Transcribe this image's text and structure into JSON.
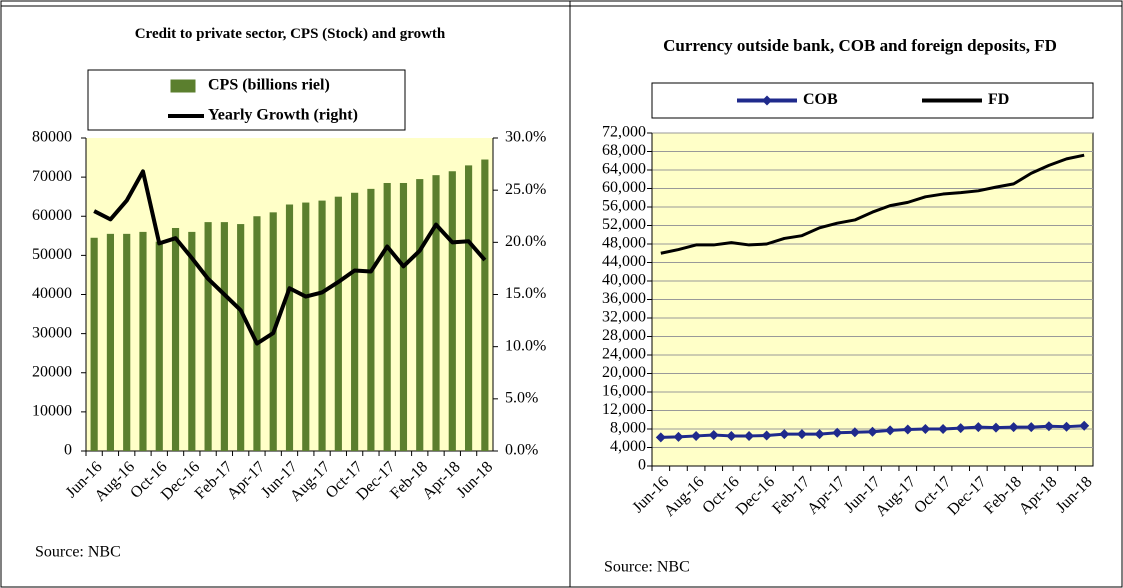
{
  "chart_data": [
    {
      "type": "bar",
      "title": "Credit to private sector, CPS (Stock) and growth",
      "source": "Source: NBC",
      "categories": [
        "Jun-16",
        null,
        "Aug-16",
        null,
        "Oct-16",
        null,
        "Dec-16",
        null,
        "Feb-17",
        null,
        "Apr-17",
        null,
        "Jun-17",
        null,
        "Aug-17",
        null,
        "Oct-17",
        null,
        "Dec-17",
        null,
        "Feb-18",
        null,
        "Apr-18",
        null,
        "Jun-18"
      ],
      "series": [
        {
          "name": "CPS (billions riel)",
          "type": "bar",
          "color": "#5b7f2e",
          "values": [
            54500,
            55500,
            55500,
            56000,
            53500,
            57000,
            56000,
            58500,
            58500,
            58000,
            60000,
            61000,
            63000,
            63500,
            64000,
            65000,
            66000,
            67000,
            68500,
            68500,
            69500,
            70500,
            71500,
            73000,
            74500
          ]
        },
        {
          "name": "Yearly Growth (right)",
          "type": "line",
          "axis": "y2",
          "color": "#000000",
          "values": [
            23,
            22.2,
            24,
            26.8,
            19.9,
            20.4,
            18.5,
            16.5,
            15,
            13.5,
            10.3,
            11.3,
            15.6,
            14.8,
            15.2,
            16.2,
            17.3,
            17.2,
            19.6,
            17.7,
            19.2,
            21.7,
            20,
            20.1,
            18.3
          ]
        }
      ],
      "ylim": [
        0,
        80000
      ],
      "yticks": [
        0,
        10000,
        20000,
        30000,
        40000,
        50000,
        60000,
        70000,
        80000
      ],
      "y2lim": [
        0,
        30
      ],
      "y2ticks": [
        {
          "value": 0,
          "label": "0.0%"
        },
        {
          "value": 5,
          "label": "5.0%"
        },
        {
          "value": 10,
          "label": "10.0%"
        },
        {
          "value": 15,
          "label": "15.0%"
        },
        {
          "value": 20,
          "label": "20.0%"
        },
        {
          "value": 25,
          "label": "25.0%"
        },
        {
          "value": 30,
          "label": "30.0%"
        }
      ],
      "grid": false,
      "legend": "top"
    },
    {
      "type": "line",
      "title": "Currency outside bank, COB and foreign deposits, FD",
      "source": "Source: NBC",
      "categories": [
        "Jun-16",
        null,
        "Aug-16",
        null,
        "Oct-16",
        null,
        "Dec-16",
        null,
        "Feb-17",
        null,
        "Apr-17",
        null,
        "Jun-17",
        null,
        "Aug-17",
        null,
        "Oct-17",
        null,
        "Dec-17",
        null,
        "Feb-18",
        null,
        "Apr-18",
        null,
        "Jun-18"
      ],
      "series": [
        {
          "name": "COB",
          "color": "#1f2a8c",
          "marker": "diamond",
          "values": [
            6200,
            6300,
            6500,
            6700,
            6500,
            6500,
            6600,
            6900,
            6900,
            6900,
            7200,
            7300,
            7400,
            7700,
            7900,
            8000,
            8000,
            8200,
            8400,
            8300,
            8400,
            8400,
            8600,
            8500,
            8700
          ]
        },
        {
          "name": "FD",
          "color": "#000000",
          "values": [
            46000,
            46800,
            47800,
            47800,
            48300,
            47800,
            48000,
            49200,
            49800,
            51500,
            52500,
            53200,
            54900,
            56300,
            57000,
            58200,
            58800,
            59100,
            59500,
            60300,
            61000,
            63300,
            65000,
            66400,
            67200
          ]
        }
      ],
      "ylim": [
        0,
        72000
      ],
      "yticks": [
        0,
        {
          "value": 4000,
          "label": "4,000"
        },
        {
          "value": 8000,
          "label": "8,000"
        },
        {
          "value": 12000,
          "label": "12,000"
        },
        {
          "value": 16000,
          "label": "16,000"
        },
        {
          "value": 20000,
          "label": "20,000"
        },
        {
          "value": 24000,
          "label": "24,000"
        },
        {
          "value": 28000,
          "label": "28,000"
        },
        {
          "value": 32000,
          "label": "32,000"
        },
        {
          "value": 36000,
          "label": "36,000"
        },
        {
          "value": 40000,
          "label": "40,000"
        },
        {
          "value": 44000,
          "label": "44,000"
        },
        {
          "value": 48000,
          "label": "48,000"
        },
        {
          "value": 52000,
          "label": "52,000"
        },
        {
          "value": 56000,
          "label": "56,000"
        },
        {
          "value": 60000,
          "label": "60,000"
        },
        {
          "value": 64000,
          "label": "64,000"
        },
        {
          "value": 68000,
          "label": "68,000"
        },
        {
          "value": 72000,
          "label": "72,000"
        }
      ],
      "grid": true,
      "legend": "top"
    }
  ]
}
